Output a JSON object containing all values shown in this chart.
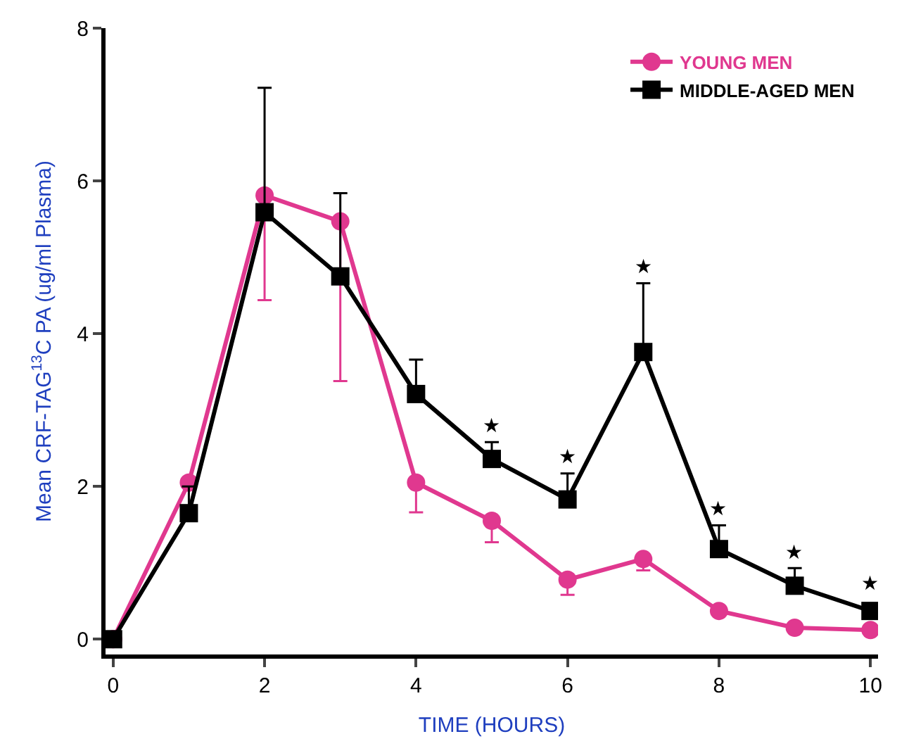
{
  "chart_data": {
    "type": "line",
    "xlabel": "TIME (HOURS)",
    "ylabel": "Mean CRF-TAG$^{13}$C PA (ug/ml Plasma)",
    "x": [
      0,
      1,
      2,
      3,
      4,
      5,
      6,
      7,
      8,
      9,
      10
    ],
    "series": [
      {
        "name": "YOUNG MEN",
        "color": "#e0388f",
        "marker": "circle",
        "values": [
          0,
          2.05,
          5.81,
          5.47,
          2.05,
          1.55,
          0.78,
          1.05,
          0.37,
          0.15,
          0.12
        ],
        "errors": [
          null,
          null,
          [
            4.44,
            5.81
          ],
          [
            3.38,
            5.47
          ],
          [
            1.66,
            2.05
          ],
          [
            1.27,
            1.55
          ],
          [
            0.58,
            0.78
          ],
          [
            0.9,
            1.05
          ],
          null,
          null,
          null
        ]
      },
      {
        "name": "MIDDLE-AGED MEN",
        "color": "#000000",
        "marker": "square",
        "values": [
          0,
          1.65,
          5.59,
          4.75,
          3.21,
          2.36,
          1.83,
          3.76,
          1.18,
          0.7,
          0.37
        ],
        "errors": [
          null,
          [
            1.65,
            2.0
          ],
          [
            5.59,
            7.22
          ],
          [
            4.75,
            5.84
          ],
          [
            3.21,
            3.66
          ],
          [
            2.36,
            2.58
          ],
          [
            1.83,
            2.17
          ],
          [
            3.76,
            4.66
          ],
          [
            1.18,
            1.49
          ],
          [
            0.7,
            0.93
          ],
          null
        ]
      }
    ],
    "annotations": [
      {
        "text": "★",
        "x": 5,
        "y": 2.58
      },
      {
        "text": "★",
        "x": 6,
        "y": 2.17
      },
      {
        "text": "★",
        "x": 7,
        "y": 4.66
      },
      {
        "text": "★",
        "x": 8,
        "y": 1.49
      },
      {
        "text": "★",
        "x": 9,
        "y": 0.93
      },
      {
        "text": "★",
        "x": 10,
        "y": 0.37
      }
    ],
    "xlim": [
      -0.1,
      10.1
    ],
    "xticks": [
      0,
      2,
      4,
      6,
      8,
      10
    ],
    "ylim": [
      -0.2,
      8
    ],
    "yticks": [
      0,
      2,
      4,
      6,
      8
    ],
    "grid": false,
    "legend": "top right",
    "line_style": "solid"
  }
}
